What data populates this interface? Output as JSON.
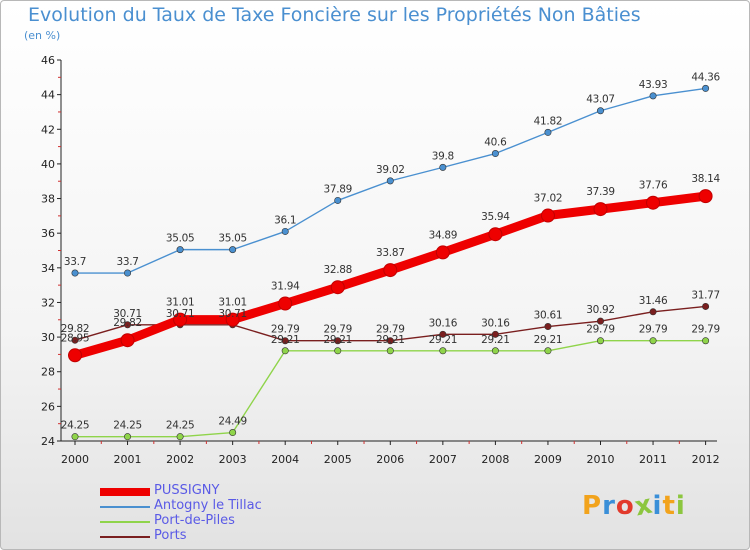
{
  "title": "Evolution du Taux de Taxe Foncière sur les Propriétés Non Bâties",
  "subtitle": "(en %)",
  "logo_text": "Proxiti",
  "logo_colors": [
    "#f2a31c",
    "#3a8fd8",
    "#e23a2c",
    "#8cc63f",
    "#3a8fd8",
    "#f2a31c",
    "#8cc63f"
  ],
  "chart_data": {
    "type": "line",
    "title": "Evolution du Taux de Taxe Foncière sur les Propriétés Non Bâties",
    "ylabel": "(en %)",
    "xlabel": "",
    "categories": [
      "2000",
      "2001",
      "2002",
      "2003",
      "2004",
      "2005",
      "2006",
      "2007",
      "2008",
      "2009",
      "2010",
      "2011",
      "2012"
    ],
    "ylim": [
      24,
      46
    ],
    "yticks": [
      24,
      26,
      28,
      30,
      32,
      34,
      36,
      38,
      40,
      42,
      44,
      46
    ],
    "grid": false,
    "legend_position": "bottom-left",
    "series": [
      {
        "name": "PUSSIGNY",
        "color": "#ee0000",
        "values": [
          28.95,
          29.82,
          31.01,
          31.01,
          31.94,
          32.88,
          33.87,
          34.89,
          35.94,
          37.02,
          37.39,
          37.76,
          38.14
        ],
        "labels": [
          "28.95",
          "29.82",
          "31.01",
          "31.01",
          "31.94",
          "32.88",
          "33.87",
          "34.89",
          "35.94",
          "37.02",
          "37.39",
          "37.76",
          "38.14"
        ]
      },
      {
        "name": "Antogny le Tillac",
        "color": "#4a90d0",
        "values": [
          33.7,
          33.7,
          35.05,
          35.05,
          36.1,
          37.89,
          39.02,
          39.8,
          40.6,
          41.82,
          43.07,
          43.93,
          44.36
        ],
        "labels": [
          "33.7",
          "33.7",
          "35.05",
          "35.05",
          "36.1",
          "37.89",
          "39.02",
          "39.8",
          "40.6",
          "41.82",
          "43.07",
          "43.93",
          "44.36"
        ]
      },
      {
        "name": "Port-de-Piles",
        "color": "#8fd44a",
        "values": [
          24.25,
          24.25,
          24.25,
          24.49,
          29.21,
          29.21,
          29.21,
          29.21,
          29.21,
          29.21,
          29.79,
          29.79,
          29.79
        ],
        "labels": [
          "24.25",
          "24.25",
          "24.25",
          "24.49",
          "29.21",
          "29.21",
          "29.21",
          "29.21",
          "29.21",
          "29.21",
          "29.79",
          "29.79",
          "29.79"
        ]
      },
      {
        "name": "Ports",
        "color": "#7a1f1f",
        "values": [
          29.82,
          30.71,
          30.71,
          30.71,
          29.79,
          29.79,
          29.79,
          30.16,
          30.16,
          30.61,
          30.92,
          31.46,
          31.77
        ],
        "labels": [
          "29.82",
          "30.71",
          "30.71",
          "30.71",
          "29.79",
          "29.79",
          "29.79",
          "30.16",
          "30.16",
          "30.61",
          "30.92",
          "31.46",
          "31.77"
        ]
      }
    ]
  }
}
